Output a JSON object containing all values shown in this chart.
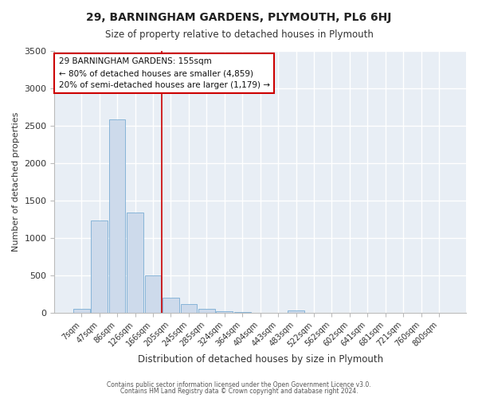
{
  "title": "29, BARNINGHAM GARDENS, PLYMOUTH, PL6 6HJ",
  "subtitle": "Size of property relative to detached houses in Plymouth",
  "xlabel": "Distribution of detached houses by size in Plymouth",
  "ylabel": "Number of detached properties",
  "bar_color": "#cddaeb",
  "bar_edge_color": "#7aadd4",
  "background_color": "#e8eef5",
  "grid_color": "#ffffff",
  "vline_color": "#cc0000",
  "categories": [
    "7sqm",
    "47sqm",
    "86sqm",
    "126sqm",
    "166sqm",
    "205sqm",
    "245sqm",
    "285sqm",
    "324sqm",
    "364sqm",
    "404sqm",
    "443sqm",
    "483sqm",
    "522sqm",
    "562sqm",
    "602sqm",
    "641sqm",
    "681sqm",
    "721sqm",
    "760sqm",
    "800sqm"
  ],
  "values": [
    50,
    1230,
    2580,
    1340,
    495,
    205,
    110,
    48,
    22,
    8,
    0,
    0,
    28,
    0,
    0,
    0,
    0,
    0,
    0,
    0,
    0
  ],
  "vline_position": 4.5,
  "annotation_text": "29 BARNINGHAM GARDENS: 155sqm\n← 80% of detached houses are smaller (4,859)\n20% of semi-detached houses are larger (1,179) →",
  "annotation_box_color": "#ffffff",
  "annotation_border_color": "#cc0000",
  "ylim": [
    0,
    3500
  ],
  "yticks": [
    0,
    500,
    1000,
    1500,
    2000,
    2500,
    3000,
    3500
  ],
  "footer1": "Contains HM Land Registry data © Crown copyright and database right 2024.",
  "footer2": "Contains public sector information licensed under the Open Government Licence v3.0."
}
